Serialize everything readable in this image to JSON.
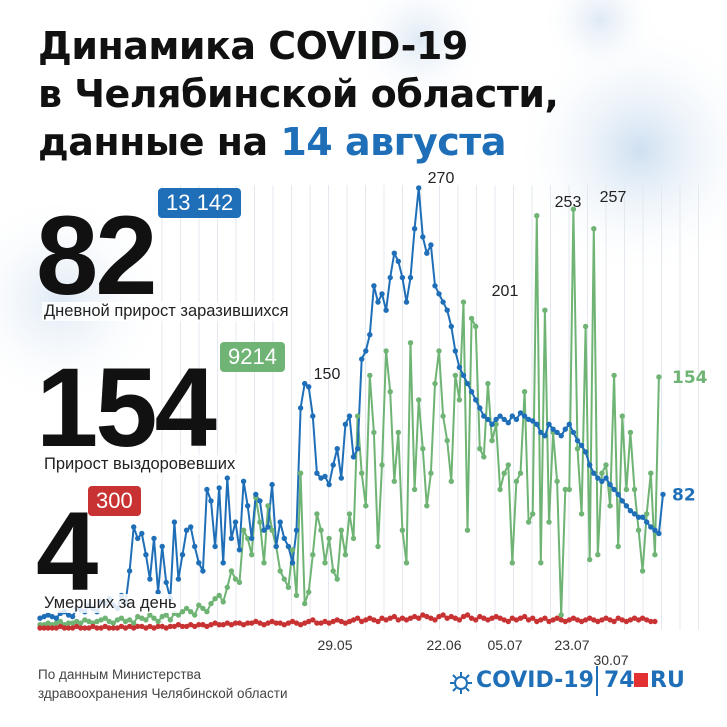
{
  "header": {
    "line1": "Динамика COVID-19",
    "line2": "в Челябинской области,",
    "line3_prefix": "данные на ",
    "line3_date": "14 августа"
  },
  "stats": {
    "infected": {
      "value": "82",
      "total": "13 142",
      "caption": "Дневной прирост заразившихся"
    },
    "recovered": {
      "value": "154",
      "total": "9214",
      "caption": "Прирост выздоровевших"
    },
    "deaths": {
      "value": "4",
      "total": "300",
      "caption": "Умерших за день"
    }
  },
  "colors": {
    "infected": "#1f6fb8",
    "recovered": "#6fb474",
    "deaths": "#c83232",
    "accent": "#1f6fb8"
  },
  "source": {
    "line1": "По данным Министерства",
    "line2": "здравоохранения Челябинской области"
  },
  "brand": {
    "covid": "COVID-19",
    "num": "74",
    "ru": "RU"
  },
  "chart_data": {
    "type": "line",
    "x_ticks": [
      "29.05",
      "22.06",
      "05.07",
      "23.07",
      "30.07"
    ],
    "annotations": [
      "150",
      "270",
      "201",
      "253",
      "257"
    ],
    "end_labels": {
      "infected": "82",
      "recovered": "154"
    },
    "series": [
      {
        "key": "infected",
        "values": [
          6,
          7,
          8,
          7,
          6,
          9,
          10,
          8,
          7,
          12,
          11,
          10,
          14,
          12,
          10,
          16,
          15,
          18,
          14,
          12,
          20,
          15,
          35,
          62,
          55,
          58,
          45,
          30,
          55,
          22,
          50,
          28,
          18,
          65,
          30,
          45,
          60,
          62,
          50,
          40,
          35,
          85,
          78,
          50,
          86,
          40,
          92,
          55,
          65,
          48,
          90,
          75,
          55,
          82,
          78,
          60,
          62,
          88,
          50,
          65,
          55,
          50,
          40,
          60,
          135,
          150,
          148,
          130,
          95,
          92,
          93,
          88,
          100,
          110,
          92,
          125,
          130,
          105,
          110,
          165,
          170,
          180,
          210,
          200,
          205,
          195,
          215,
          230,
          225,
          215,
          200,
          215,
          245,
          270,
          240,
          230,
          235,
          210,
          205,
          200,
          195,
          185,
          170,
          160,
          155,
          150,
          145,
          140,
          135,
          130,
          128,
          125,
          128,
          130,
          128,
          126,
          130,
          128,
          132,
          130,
          128,
          127,
          125,
          120,
          118,
          125,
          122,
          120,
          118,
          122,
          125,
          120,
          115,
          112,
          108,
          100,
          95,
          92,
          90,
          92,
          88,
          85,
          82,
          78,
          75,
          72,
          70,
          68,
          68,
          65,
          62,
          60,
          58,
          82
        ]
      },
      {
        "key": "recovered",
        "values": [
          2,
          2,
          3,
          2,
          3,
          4,
          2,
          3,
          3,
          4,
          3,
          5,
          4,
          3,
          4,
          5,
          6,
          4,
          3,
          5,
          6,
          4,
          5,
          3,
          7,
          6,
          5,
          8,
          6,
          4,
          7,
          8,
          5,
          9,
          8,
          10,
          12,
          10,
          8,
          14,
          12,
          10,
          15,
          18,
          20,
          16,
          25,
          35,
          30,
          28,
          60,
          55,
          45,
          80,
          65,
          40,
          75,
          60,
          50,
          35,
          30,
          25,
          48,
          20,
          95,
          15,
          22,
          45,
          70,
          60,
          40,
          55,
          35,
          30,
          60,
          45,
          70,
          55,
          130,
          95,
          75,
          155,
          120,
          50,
          100,
          170,
          145,
          90,
          120,
          60,
          40,
          175,
          85,
          140,
          110,
          75,
          95,
          150,
          170,
          130,
          115,
          90,
          155,
          140,
          200,
          60,
          190,
          185,
          110,
          105,
          150,
          115,
          125,
          85,
          95,
          100,
          40,
          90,
          95,
          145,
          65,
          70,
          253,
          40,
          195,
          65,
          120,
          90,
          8,
          85,
          85,
          257,
          110,
          70,
          185,
          42,
          245,
          45,
          95,
          100,
          75,
          155,
          50,
          130,
          85,
          120,
          85,
          60,
          35,
          70,
          95,
          45,
          154
        ]
      },
      {
        "key": "deaths",
        "values": [
          0,
          0,
          0,
          0,
          0,
          1,
          0,
          0,
          0,
          1,
          0,
          0,
          0,
          1,
          0,
          0,
          1,
          0,
          0,
          0,
          1,
          0,
          1,
          0,
          1,
          1,
          0,
          1,
          0,
          1,
          1,
          0,
          1,
          1,
          2,
          1,
          1,
          2,
          1,
          2,
          2,
          1,
          2,
          3,
          2,
          2,
          3,
          2,
          3,
          3,
          2,
          3,
          3,
          4,
          3,
          2,
          3,
          4,
          3,
          3,
          2,
          3,
          4,
          3,
          2,
          3,
          4,
          5,
          3,
          3,
          4,
          3,
          4,
          5,
          4,
          3,
          4,
          5,
          6,
          4,
          5,
          6,
          5,
          4,
          6,
          5,
          6,
          7,
          5,
          6,
          5,
          6,
          7,
          6,
          8,
          7,
          6,
          5,
          7,
          8,
          6,
          7,
          6,
          5,
          7,
          8,
          6,
          5,
          7,
          6,
          5,
          6,
          7,
          6,
          5,
          4,
          6,
          5,
          6,
          7,
          5,
          6,
          4,
          5,
          6,
          4,
          5,
          6,
          5,
          4,
          5,
          6,
          5,
          4,
          5,
          6,
          5,
          4,
          5,
          6,
          5,
          4,
          6,
          5,
          4,
          5,
          6,
          5,
          6,
          5,
          4,
          4
        ]
      }
    ]
  }
}
